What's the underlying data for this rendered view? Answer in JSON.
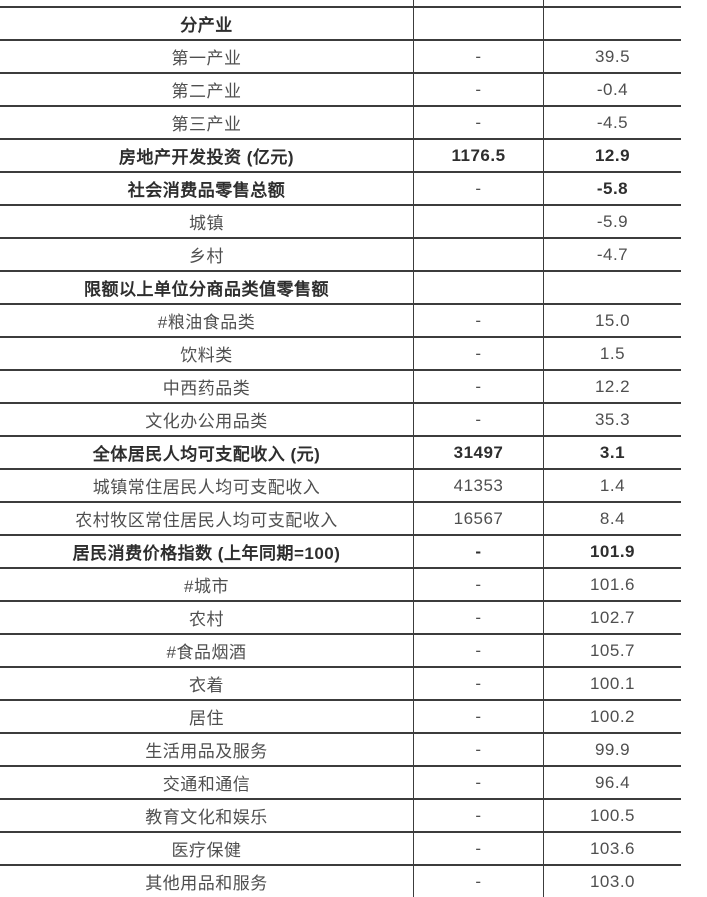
{
  "table": {
    "columns": [
      "indicator",
      "value",
      "growth_rate"
    ],
    "rows": [
      {
        "label": "分产业",
        "value": "",
        "growth": "",
        "label_bold": true,
        "value_bold": false,
        "growth_bold": false
      },
      {
        "label": "第一产业",
        "value": "-",
        "growth": "39.5",
        "label_bold": false,
        "value_bold": false,
        "growth_bold": false
      },
      {
        "label": "第二产业",
        "value": "-",
        "growth": "-0.4",
        "label_bold": false,
        "value_bold": false,
        "growth_bold": false
      },
      {
        "label": "第三产业",
        "value": "-",
        "growth": "-4.5",
        "label_bold": false,
        "value_bold": false,
        "growth_bold": false
      },
      {
        "label": "房地产开发投资 (亿元)",
        "value": "1176.5",
        "growth": "12.9",
        "label_bold": true,
        "value_bold": true,
        "growth_bold": true
      },
      {
        "label": "社会消费品零售总额",
        "value": "-",
        "growth": "-5.8",
        "label_bold": true,
        "value_bold": false,
        "growth_bold": true
      },
      {
        "label": "城镇",
        "value": "",
        "growth": "-5.9",
        "label_bold": false,
        "value_bold": false,
        "growth_bold": false
      },
      {
        "label": "乡村",
        "value": "",
        "growth": "-4.7",
        "label_bold": false,
        "value_bold": false,
        "growth_bold": false
      },
      {
        "label": "限额以上单位分商品类值零售额",
        "value": "",
        "growth": "",
        "label_bold": true,
        "value_bold": false,
        "growth_bold": false
      },
      {
        "label": "#粮油食品类",
        "value": "-",
        "growth": "15.0",
        "label_bold": false,
        "value_bold": false,
        "growth_bold": false
      },
      {
        "label": "饮料类",
        "value": "-",
        "growth": "1.5",
        "label_bold": false,
        "value_bold": false,
        "growth_bold": false
      },
      {
        "label": "中西药品类",
        "value": "-",
        "growth": "12.2",
        "label_bold": false,
        "value_bold": false,
        "growth_bold": false
      },
      {
        "label": "文化办公用品类",
        "value": "-",
        "growth": "35.3",
        "label_bold": false,
        "value_bold": false,
        "growth_bold": false
      },
      {
        "label": "全体居民人均可支配收入 (元)",
        "value": "31497",
        "growth": "3.1",
        "label_bold": true,
        "value_bold": true,
        "growth_bold": true
      },
      {
        "label": "城镇常住居民人均可支配收入",
        "value": "41353",
        "growth": "1.4",
        "label_bold": false,
        "value_bold": false,
        "growth_bold": false
      },
      {
        "label": "农村牧区常住居民人均可支配收入",
        "value": "16567",
        "growth": "8.4",
        "label_bold": false,
        "value_bold": false,
        "growth_bold": false
      },
      {
        "label": "居民消费价格指数 (上年同期=100)",
        "value": "-",
        "growth": "101.9",
        "label_bold": true,
        "value_bold": true,
        "growth_bold": true
      },
      {
        "label": "#城市",
        "value": "-",
        "growth": "101.6",
        "label_bold": false,
        "value_bold": false,
        "growth_bold": false
      },
      {
        "label": "农村",
        "value": "-",
        "growth": "102.7",
        "label_bold": false,
        "value_bold": false,
        "growth_bold": false
      },
      {
        "label": "#食品烟酒",
        "value": "-",
        "growth": "105.7",
        "label_bold": false,
        "value_bold": false,
        "growth_bold": false
      },
      {
        "label": "衣着",
        "value": "-",
        "growth": "100.1",
        "label_bold": false,
        "value_bold": false,
        "growth_bold": false
      },
      {
        "label": "居住",
        "value": "-",
        "growth": "100.2",
        "label_bold": false,
        "value_bold": false,
        "growth_bold": false
      },
      {
        "label": "生活用品及服务",
        "value": "-",
        "growth": "99.9",
        "label_bold": false,
        "value_bold": false,
        "growth_bold": false
      },
      {
        "label": "交通和通信",
        "value": "-",
        "growth": "96.4",
        "label_bold": false,
        "value_bold": false,
        "growth_bold": false
      },
      {
        "label": "教育文化和娱乐",
        "value": "-",
        "growth": "100.5",
        "label_bold": false,
        "value_bold": false,
        "growth_bold": false
      },
      {
        "label": "医疗保健",
        "value": "-",
        "growth": "103.6",
        "label_bold": false,
        "value_bold": false,
        "growth_bold": false
      },
      {
        "label": "其他用品和服务",
        "value": "-",
        "growth": "103.0",
        "label_bold": false,
        "value_bold": false,
        "growth_bold": false
      }
    ]
  },
  "colors": {
    "background": "#ffffff",
    "border": "#3c3c3c",
    "text_regular": "#4f4f4f",
    "text_bold": "#2e2e2e"
  }
}
